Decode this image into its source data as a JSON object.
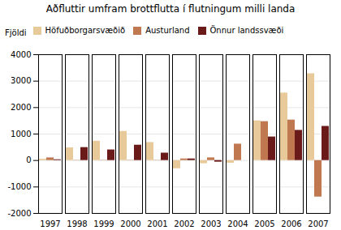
{
  "chart_data": {
    "type": "bar",
    "title": "Aðfluttir umfram brottflutta í flutningum milli landa",
    "ylabel": "Fjöldi",
    "categories": [
      "1997",
      "1998",
      "1999",
      "2000",
      "2001",
      "2002",
      "2003",
      "2004",
      "2005",
      "2006",
      "2007"
    ],
    "series": [
      {
        "name": "Höfuðborgarsvæðið",
        "color": "#e8c99a",
        "values": [
          50,
          480,
          730,
          1100,
          680,
          -310,
          -120,
          -100,
          1500,
          2550,
          3280
        ]
      },
      {
        "name": "Austurland",
        "color": "#c07850",
        "values": [
          100,
          10,
          10,
          10,
          10,
          60,
          100,
          620,
          1470,
          1530,
          -1380
        ]
      },
      {
        "name": "Önnur landssvæði",
        "color": "#6b1a1a",
        "values": [
          30,
          490,
          400,
          580,
          280,
          60,
          -60,
          0,
          890,
          1140,
          1290
        ]
      }
    ],
    "ylim": [
      -2000,
      4000
    ],
    "yticks": [
      -2000,
      -1000,
      0,
      1000,
      2000,
      3000,
      4000
    ],
    "grid": true,
    "legend": "upper left"
  }
}
